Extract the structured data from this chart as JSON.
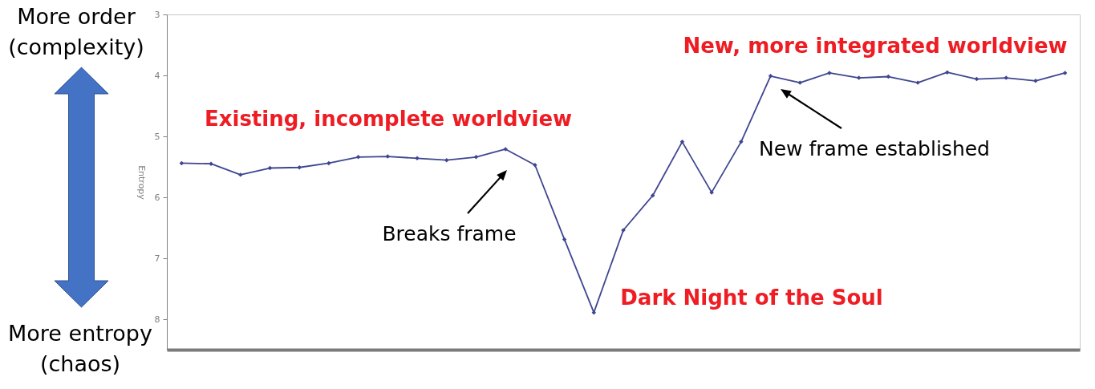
{
  "chart_data": {
    "type": "line",
    "ylabel": "Entropy",
    "annotations": [
      "More order\n(complexity)",
      "Existing, incomplete worldview",
      "Breaks frame",
      "Dark Night of the Soul",
      "New, more integrated worldview",
      "New frame established",
      "More entropy\n(chaos)"
    ],
    "categories": [
      null,
      null,
      null,
      null,
      null,
      null,
      null,
      null,
      null,
      null,
      null,
      null,
      null,
      null,
      null,
      null,
      null,
      null,
      null,
      null,
      null,
      null,
      null,
      null,
      null,
      null,
      null,
      null,
      null,
      null,
      null
    ],
    "series": [
      {
        "color": "#3f4690",
        "values": [
          5.44,
          5.45,
          5.63,
          5.52,
          5.51,
          5.44,
          5.34,
          5.33,
          5.36,
          5.39,
          5.34,
          5.21,
          5.47,
          6.69,
          7.89,
          6.54,
          5.97,
          5.09,
          5.92,
          5.09,
          4.01,
          4.12,
          3.96,
          4.04,
          4.02,
          4.12,
          3.95,
          4.06,
          4.04,
          4.09,
          3.96
        ]
      }
    ],
    "ylim": [
      8.5,
      3
    ],
    "yticks": [
      3,
      4,
      5,
      6,
      7,
      8
    ],
    "grid": false,
    "tick_labels": "y",
    "marker": "diamond",
    "line_style": "solid"
  }
}
